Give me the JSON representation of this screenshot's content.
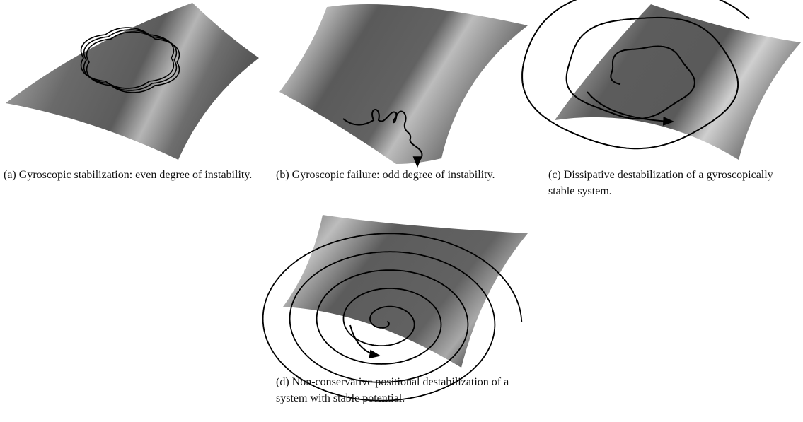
{
  "figures": [
    {
      "caption": "(a) Gyroscopic stabilization: even degree of instability."
    },
    {
      "caption": "(b) Gyroscopic failure: odd degree of instability."
    },
    {
      "caption": "(c) Dissipative destabilization of a gyroscopically stable system."
    },
    {
      "caption": "(d) Non-conservative positional destabilization of a system with stable potential."
    }
  ]
}
